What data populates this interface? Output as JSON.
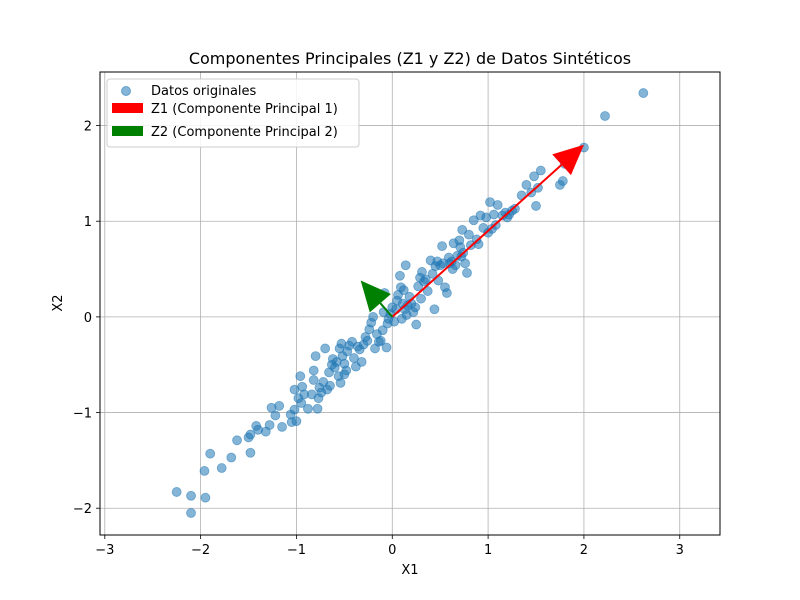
{
  "chart_data": {
    "type": "scatter",
    "title": "Componentes Principales (Z1 y Z2) de Datos Sintéticos",
    "xlabel": "X1",
    "ylabel": "X2",
    "xlim": [
      -3.05,
      3.42
    ],
    "ylim": [
      -2.28,
      2.56
    ],
    "xticks": [
      -3,
      -2,
      -1,
      0,
      1,
      2,
      3
    ],
    "yticks": [
      -2,
      -1,
      0,
      1,
      2
    ],
    "xtick_labels": [
      "−3",
      "−2",
      "−1",
      "0",
      "1",
      "2",
      "3"
    ],
    "ytick_labels": [
      "−2",
      "−1",
      "0",
      "1",
      "2"
    ],
    "grid": true,
    "legend_position": "top-left",
    "legend": [
      {
        "label": "Datos originales",
        "kind": "marker",
        "color": "#1f77b4"
      },
      {
        "label": "Z1 (Componente Principal 1)",
        "kind": "patch",
        "color": "#ff0000"
      },
      {
        "label": "Z2 (Componente Principal 2)",
        "kind": "patch",
        "color": "#008000"
      }
    ],
    "series": [
      {
        "name": "Datos originales",
        "color": "#1f77b4",
        "alpha": 0.55,
        "points": [
          [
            -2.25,
            -1.83
          ],
          [
            -2.1,
            -1.87
          ],
          [
            -2.1,
            -2.05
          ],
          [
            -1.95,
            -1.89
          ],
          [
            -1.96,
            -1.61
          ],
          [
            -1.9,
            -1.43
          ],
          [
            -1.78,
            -1.58
          ],
          [
            -1.68,
            -1.47
          ],
          [
            -1.62,
            -1.29
          ],
          [
            -1.5,
            -1.26
          ],
          [
            -1.48,
            -1.23
          ],
          [
            -1.48,
            -1.42
          ],
          [
            -1.42,
            -1.14
          ],
          [
            -1.4,
            -1.18
          ],
          [
            -1.32,
            -1.2
          ],
          [
            -1.28,
            -1.13
          ],
          [
            -1.26,
            -0.95
          ],
          [
            -1.22,
            -1.03
          ],
          [
            -1.18,
            -0.93
          ],
          [
            -1.15,
            -1.15
          ],
          [
            -1.06,
            -1.02
          ],
          [
            -1.05,
            -1.1
          ],
          [
            -1.02,
            -0.97
          ],
          [
            -1.0,
            -1.09
          ],
          [
            -1.02,
            -0.76
          ],
          [
            -0.98,
            -0.85
          ],
          [
            -0.96,
            -0.62
          ],
          [
            -0.95,
            -0.9
          ],
          [
            -0.94,
            -0.73
          ],
          [
            -0.92,
            -0.81
          ],
          [
            -0.88,
            -0.96
          ],
          [
            -0.84,
            -0.81
          ],
          [
            -0.82,
            -0.56
          ],
          [
            -0.82,
            -0.66
          ],
          [
            -0.8,
            -0.41
          ],
          [
            -0.78,
            -0.96
          ],
          [
            -0.77,
            -0.85
          ],
          [
            -0.76,
            -0.74
          ],
          [
            -0.74,
            -0.79
          ],
          [
            -0.72,
            -0.68
          ],
          [
            -0.7,
            -0.33
          ],
          [
            -0.68,
            -0.76
          ],
          [
            -0.66,
            -0.58
          ],
          [
            -0.65,
            -0.72
          ],
          [
            -0.63,
            -0.5
          ],
          [
            -0.62,
            -0.44
          ],
          [
            -0.6,
            -0.53
          ],
          [
            -0.58,
            -0.47
          ],
          [
            -0.56,
            -0.62
          ],
          [
            -0.55,
            -0.33
          ],
          [
            -0.54,
            -0.69
          ],
          [
            -0.53,
            -0.28
          ],
          [
            -0.52,
            -0.41
          ],
          [
            -0.5,
            -0.6
          ],
          [
            -0.5,
            -0.49
          ],
          [
            -0.48,
            -0.56
          ],
          [
            -0.47,
            -0.36
          ],
          [
            -0.45,
            -0.3
          ],
          [
            -0.42,
            -0.26
          ],
          [
            -0.4,
            -0.43
          ],
          [
            -0.38,
            -0.52
          ],
          [
            -0.36,
            -0.31
          ],
          [
            -0.34,
            -0.34
          ],
          [
            -0.32,
            -0.47
          ],
          [
            -0.3,
            -0.29
          ],
          [
            -0.28,
            -0.21
          ],
          [
            -0.26,
            -0.25
          ],
          [
            -0.24,
            -0.13
          ],
          [
            -0.22,
            -0.06
          ],
          [
            -0.2,
            0.0
          ],
          [
            -0.18,
            -0.33
          ],
          [
            -0.16,
            -0.18
          ],
          [
            -0.14,
            -0.26
          ],
          [
            -0.12,
            -0.25
          ],
          [
            -0.1,
            -0.14
          ],
          [
            -0.09,
            0.05
          ],
          [
            -0.08,
            0.25
          ],
          [
            -0.06,
            -0.32
          ],
          [
            -0.05,
            -0.07
          ],
          [
            -0.04,
            -0.02
          ],
          [
            -0.02,
            0.03
          ],
          [
            0.0,
            0.1
          ],
          [
            0.02,
            -0.05
          ],
          [
            0.04,
            0.08
          ],
          [
            0.05,
            0.17
          ],
          [
            0.06,
            0.23
          ],
          [
            0.08,
            0.43
          ],
          [
            0.09,
            0.31
          ],
          [
            0.1,
            -0.02
          ],
          [
            0.11,
            0.14
          ],
          [
            0.12,
            0.28
          ],
          [
            0.13,
            0.08
          ],
          [
            0.14,
            0.54
          ],
          [
            0.15,
            0.02
          ],
          [
            0.16,
            0.12
          ],
          [
            0.18,
            0.21
          ],
          [
            0.2,
            0.14
          ],
          [
            0.22,
            0.05
          ],
          [
            0.24,
            0.1
          ],
          [
            0.25,
            -0.08
          ],
          [
            0.27,
            0.32
          ],
          [
            0.29,
            0.41
          ],
          [
            0.3,
            0.19
          ],
          [
            0.31,
            0.47
          ],
          [
            0.33,
            0.37
          ],
          [
            0.35,
            0.39
          ],
          [
            0.37,
            0.27
          ],
          [
            0.4,
            0.59
          ],
          [
            0.42,
            0.45
          ],
          [
            0.44,
            0.08
          ],
          [
            0.45,
            0.53
          ],
          [
            0.47,
            0.58
          ],
          [
            0.48,
            0.38
          ],
          [
            0.5,
            0.54
          ],
          [
            0.52,
            0.74
          ],
          [
            0.53,
            0.56
          ],
          [
            0.55,
            0.31
          ],
          [
            0.57,
            0.25
          ],
          [
            0.59,
            0.62
          ],
          [
            0.6,
            0.56
          ],
          [
            0.62,
            0.58
          ],
          [
            0.63,
            0.5
          ],
          [
            0.64,
            0.77
          ],
          [
            0.66,
            0.54
          ],
          [
            0.68,
            0.64
          ],
          [
            0.7,
            0.8
          ],
          [
            0.71,
            0.73
          ],
          [
            0.72,
            0.63
          ],
          [
            0.73,
            0.91
          ],
          [
            0.74,
            0.67
          ],
          [
            0.76,
            0.56
          ],
          [
            0.78,
            0.46
          ],
          [
            0.8,
            0.86
          ],
          [
            0.82,
            0.75
          ],
          [
            0.85,
            1.01
          ],
          [
            0.88,
            0.81
          ],
          [
            0.9,
            0.76
          ],
          [
            0.92,
            1.06
          ],
          [
            0.95,
            0.93
          ],
          [
            0.98,
            1.04
          ],
          [
            1.0,
            0.88
          ],
          [
            1.02,
            1.2
          ],
          [
            1.04,
            0.92
          ],
          [
            1.06,
            1.07
          ],
          [
            1.08,
            0.96
          ],
          [
            1.1,
            1.17
          ],
          [
            1.15,
            1.06
          ],
          [
            1.18,
            1.09
          ],
          [
            1.2,
            1.04
          ],
          [
            1.22,
            1.07
          ],
          [
            1.25,
            1.11
          ],
          [
            1.28,
            1.13
          ],
          [
            1.35,
            1.27
          ],
          [
            1.4,
            1.38
          ],
          [
            1.45,
            1.3
          ],
          [
            1.48,
            1.47
          ],
          [
            1.5,
            1.16
          ],
          [
            1.52,
            1.35
          ],
          [
            1.55,
            1.53
          ],
          [
            1.75,
            1.38
          ],
          [
            1.78,
            1.42
          ],
          [
            1.8,
            1.6
          ],
          [
            2.0,
            1.77
          ],
          [
            2.22,
            2.1
          ],
          [
            2.62,
            2.34
          ]
        ]
      }
    ],
    "arrows": [
      {
        "name": "Z1 (Componente Principal 1)",
        "color": "#ff0000",
        "from": [
          0.0,
          0.0
        ],
        "to": [
          2.0,
          1.8
        ]
      },
      {
        "name": "Z2 (Componente Principal 2)",
        "color": "#008000",
        "from": [
          0.0,
          0.0
        ],
        "to": [
          -0.33,
          0.38
        ]
      }
    ]
  }
}
